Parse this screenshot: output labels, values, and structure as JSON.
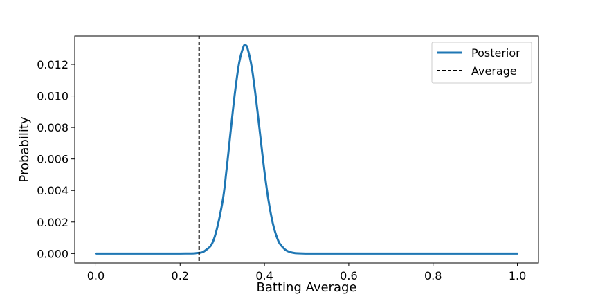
{
  "chart_data": {
    "type": "line",
    "xlabel": "Batting Average",
    "ylabel": "Probability",
    "xlim": [
      -0.05,
      1.05
    ],
    "ylim": [
      -0.0006,
      0.0138
    ],
    "xticks": [
      0.0,
      0.2,
      0.4,
      0.6,
      0.8,
      1.0
    ],
    "xtick_labels": [
      "0.0",
      "0.2",
      "0.4",
      "0.6",
      "0.8",
      "1.0"
    ],
    "yticks": [
      0.0,
      0.002,
      0.004,
      0.006,
      0.008,
      0.01,
      0.012
    ],
    "ytick_labels": [
      "0.000",
      "0.002",
      "0.004",
      "0.006",
      "0.008",
      "0.010",
      "0.012"
    ],
    "grid": false,
    "legend": {
      "placement": "top-right",
      "entries": [
        "Posterior",
        "Average"
      ]
    },
    "series": [
      {
        "name": "Posterior",
        "style": "solid",
        "color": "#1f77b4",
        "x": [
          0.0,
          0.2,
          0.24,
          0.26,
          0.28,
          0.3,
          0.31,
          0.32,
          0.33,
          0.34,
          0.35,
          0.355,
          0.36,
          0.37,
          0.38,
          0.39,
          0.4,
          0.41,
          0.42,
          0.43,
          0.44,
          0.46,
          0.5,
          0.6,
          0.8,
          1.0
        ],
        "y": [
          0.0,
          0.0,
          3e-05,
          0.0002,
          0.0009,
          0.0032,
          0.0053,
          0.0078,
          0.0102,
          0.0121,
          0.0131,
          0.0132,
          0.013,
          0.0118,
          0.0098,
          0.0075,
          0.0052,
          0.0033,
          0.0019,
          0.001,
          0.0005,
          0.0001,
          0.0,
          0.0,
          0.0,
          0.0
        ]
      }
    ],
    "reference_lines": [
      {
        "name": "Average",
        "orientation": "vertical",
        "x": 0.245,
        "style": "dashed",
        "color": "#000000"
      }
    ]
  }
}
